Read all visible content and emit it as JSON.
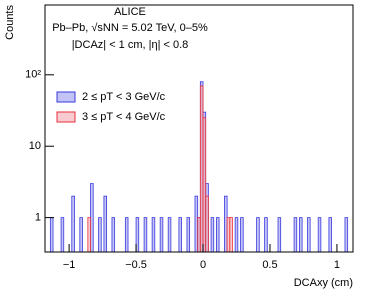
{
  "chart_data": {
    "type": "histogram",
    "title": "ALICE",
    "subtitle": "Pb–Pb, √sNN = 5.02 TeV, 0–5%",
    "annotation": "|DCAz| < 1 cm, |η| < 0.8",
    "x_label": "DCAxy (cm)",
    "y_label": "Counts",
    "log_y": true,
    "legend": "upper left",
    "bins": [
      -1.18,
      -1.16,
      -1.14,
      -1.12,
      -1.1,
      -1.08,
      -1.06,
      -1.04,
      -1.02,
      -1.0,
      -0.98,
      -0.96,
      -0.94,
      -0.92,
      -0.9,
      -0.88,
      -0.86,
      -0.84,
      -0.82,
      -0.8,
      -0.78,
      -0.76,
      -0.74,
      -0.72,
      -0.7,
      -0.68,
      -0.66,
      -0.64,
      -0.62,
      -0.6,
      -0.58,
      -0.56,
      -0.54,
      -0.52,
      -0.5,
      -0.48,
      -0.46,
      -0.44,
      -0.42,
      -0.4,
      -0.38,
      -0.36,
      -0.34,
      -0.32,
      -0.3,
      -0.28,
      -0.26,
      -0.24,
      -0.22,
      -0.2,
      -0.18,
      -0.16,
      -0.14,
      -0.12,
      -0.1,
      -0.08,
      -0.06,
      -0.04,
      -0.02,
      0,
      0.02,
      0.04,
      0.06,
      0.08,
      0.1,
      0.12,
      0.14,
      0.16,
      0.18,
      0.2,
      0.22,
      0.24,
      0.26,
      0.28,
      0.3,
      0.32,
      0.34,
      0.36,
      0.38,
      0.4,
      0.42,
      0.44,
      0.46,
      0.48,
      0.5,
      0.52,
      0.54,
      0.56,
      0.58,
      0.6,
      0.62,
      0.64,
      0.66,
      0.68,
      0.7,
      0.72,
      0.74,
      0.76,
      0.78,
      0.8,
      0.82,
      0.84,
      0.86,
      0.88,
      0.9,
      0.92,
      0.94,
      0.96,
      0.98,
      1.0,
      1.02,
      1.04,
      1.06,
      1.08,
      1.1,
      1.12
    ],
    "series": [
      {
        "name": "2 ≤ pT < 3 GeV/c",
        "color": "#3a3adf",
        "fill": "#b4b4f4",
        "values": [
          0,
          0,
          1,
          0,
          0,
          0,
          1,
          0,
          0,
          0,
          2,
          0,
          0,
          1,
          0,
          0,
          0,
          3,
          0,
          0,
          1,
          0,
          2,
          0,
          0,
          1,
          0,
          0,
          0,
          0,
          1,
          0,
          0,
          0,
          1,
          0,
          0,
          1,
          0,
          0,
          1,
          0,
          0,
          1,
          0,
          0,
          1,
          0,
          0,
          0,
          1,
          0,
          0,
          1,
          0,
          0,
          2,
          1,
          80,
          30,
          3,
          0,
          1,
          0,
          1,
          0,
          0,
          2,
          0,
          0,
          0,
          1,
          0,
          1,
          0,
          0,
          0,
          0,
          0,
          1,
          0,
          0,
          1,
          0,
          0,
          0,
          0,
          1,
          0,
          0,
          0,
          0,
          0,
          1,
          0,
          1,
          0,
          0,
          1,
          0,
          0,
          0,
          1,
          0,
          0,
          0,
          1,
          0,
          0,
          0,
          0,
          0,
          1,
          0,
          0
        ]
      },
      {
        "name": "3 ≤ pT < 4 GeV/c",
        "color": "#e8323c",
        "fill": "#f4a8b0",
        "values": [
          0,
          0,
          0,
          0,
          0,
          0,
          0,
          0,
          0,
          0,
          0,
          0,
          0,
          0,
          0,
          0,
          1,
          0,
          0,
          0,
          0,
          0,
          0,
          0,
          0,
          0,
          0,
          0,
          0,
          0,
          0,
          0,
          0,
          0,
          0,
          0,
          0,
          0,
          0,
          0,
          0,
          0,
          0,
          0,
          0,
          0,
          0,
          0,
          0,
          0,
          0,
          0,
          0,
          0,
          0,
          0,
          0,
          1,
          70,
          25,
          2,
          0,
          0,
          0,
          0,
          0,
          0,
          0,
          1,
          1,
          0,
          0,
          0,
          0,
          0,
          0,
          0,
          0,
          0,
          0,
          0,
          0,
          0,
          0,
          0,
          0,
          0,
          0,
          0,
          0,
          0,
          0,
          0,
          0,
          0,
          0,
          0,
          0,
          0,
          0,
          0,
          0,
          0,
          0,
          0,
          0,
          0,
          0,
          0,
          0,
          0,
          0,
          0,
          0,
          0
        ]
      }
    ],
    "xlim": [
      -1.18,
      1.12
    ],
    "xticks": [
      {
        "value": -1,
        "label": "−1"
      },
      {
        "value": -0.5,
        "label": "−0.5"
      },
      0,
      0.5,
      1
    ],
    "ylim": [
      0.33,
      950
    ],
    "yticks": [
      1,
      10,
      {
        "value": 100,
        "label": "10²"
      }
    ]
  }
}
